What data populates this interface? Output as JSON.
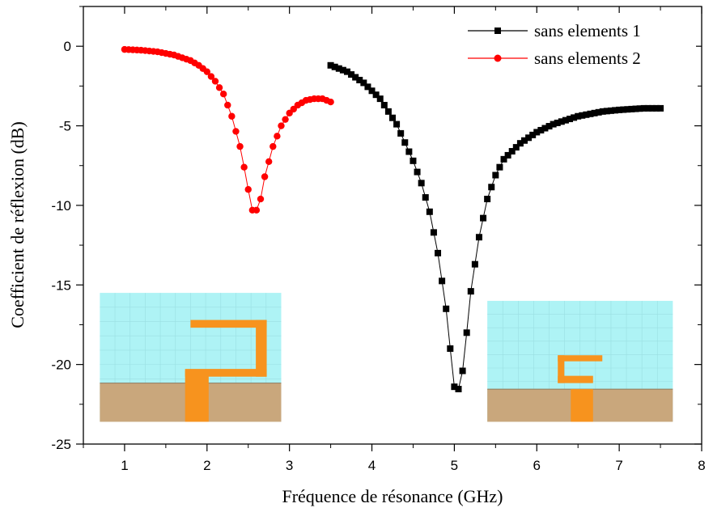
{
  "chart_data": {
    "type": "line",
    "xlabel": "Fréquence de résonance (GHz)",
    "ylabel": "Coefficient de réflexion (dB)",
    "xlim": [
      0.5,
      8
    ],
    "ylim": [
      -25,
      2.5
    ],
    "xticks": [
      "1",
      "2",
      "3",
      "4",
      "5",
      "6",
      "7",
      "8"
    ],
    "yticks": [
      "0",
      "-5",
      "-10",
      "-15",
      "-20",
      "-25"
    ],
    "grid": false,
    "legend_position": "top-right",
    "series": [
      {
        "name": "sans elements 1",
        "color": "#000000",
        "marker": "square",
        "x_range": [
          3.5,
          7.5
        ],
        "step": 0.05,
        "anchors": [
          [
            3.5,
            -1.2
          ],
          [
            3.7,
            -1.6
          ],
          [
            3.9,
            -2.3
          ],
          [
            4.1,
            -3.3
          ],
          [
            4.3,
            -4.9
          ],
          [
            4.5,
            -7.2
          ],
          [
            4.6,
            -8.6
          ],
          [
            4.7,
            -10.4
          ],
          [
            4.8,
            -13.0
          ],
          [
            4.9,
            -16.5
          ],
          [
            4.95,
            -19.0
          ],
          [
            5.0,
            -21.4
          ],
          [
            5.03,
            -22.0
          ],
          [
            5.1,
            -20.4
          ],
          [
            5.15,
            -18.0
          ],
          [
            5.2,
            -15.4
          ],
          [
            5.3,
            -12.0
          ],
          [
            5.4,
            -9.6
          ],
          [
            5.5,
            -8.1
          ],
          [
            5.6,
            -7.1
          ],
          [
            5.8,
            -6.1
          ],
          [
            6.0,
            -5.4
          ],
          [
            6.2,
            -4.9
          ],
          [
            6.5,
            -4.4
          ],
          [
            6.8,
            -4.1
          ],
          [
            7.0,
            -4.0
          ],
          [
            7.3,
            -3.9
          ],
          [
            7.5,
            -3.9
          ]
        ]
      },
      {
        "name": "sans elements 2",
        "color": "#ff0000",
        "marker": "circle",
        "x_range": [
          1.0,
          3.5
        ],
        "step": 0.05,
        "anchors": [
          [
            1.0,
            -0.2
          ],
          [
            1.2,
            -0.25
          ],
          [
            1.4,
            -0.35
          ],
          [
            1.6,
            -0.55
          ],
          [
            1.8,
            -0.9
          ],
          [
            1.9,
            -1.2
          ],
          [
            2.0,
            -1.6
          ],
          [
            2.1,
            -2.2
          ],
          [
            2.2,
            -3.0
          ],
          [
            2.3,
            -4.4
          ],
          [
            2.4,
            -6.3
          ],
          [
            2.45,
            -7.6
          ],
          [
            2.5,
            -9.0
          ],
          [
            2.55,
            -10.3
          ],
          [
            2.6,
            -10.3
          ],
          [
            2.65,
            -9.6
          ],
          [
            2.7,
            -8.2
          ],
          [
            2.8,
            -6.3
          ],
          [
            2.9,
            -5.0
          ],
          [
            3.0,
            -4.2
          ],
          [
            3.1,
            -3.7
          ],
          [
            3.2,
            -3.4
          ],
          [
            3.3,
            -3.3
          ],
          [
            3.4,
            -3.3
          ],
          [
            3.5,
            -3.5
          ]
        ]
      }
    ],
    "insets": [
      {
        "position": "bottom-left",
        "x_range": [
          0.7,
          2.9
        ],
        "y_range": [
          -23.6,
          -15.5
        ]
      },
      {
        "position": "bottom-right",
        "x_range": [
          5.4,
          7.65
        ],
        "y_range": [
          -23.6,
          -16.0
        ]
      }
    ]
  }
}
